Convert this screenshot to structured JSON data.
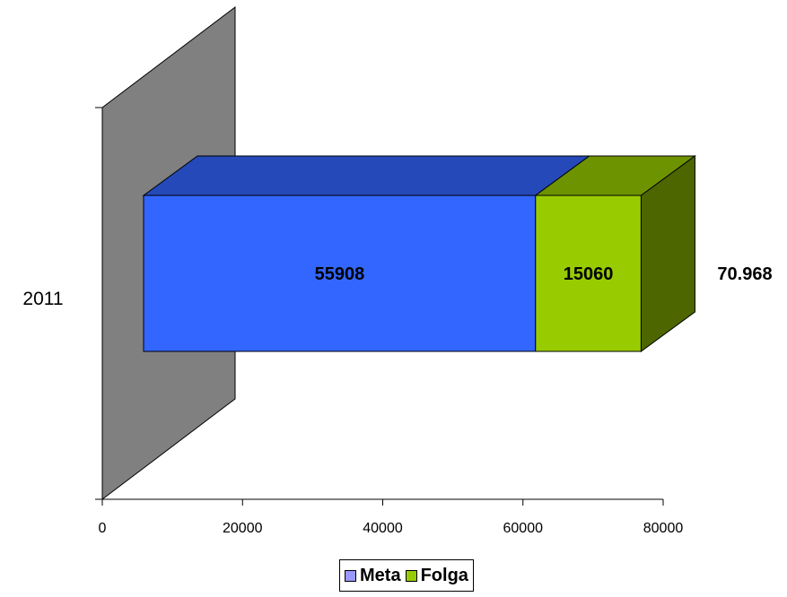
{
  "chart_data": {
    "type": "bar",
    "orientation": "horizontal",
    "stacked": true,
    "three_d": true,
    "categories": [
      "2011"
    ],
    "series": [
      {
        "name": "Meta",
        "values": [
          55908
        ],
        "label": "55908",
        "color": "#3366FF",
        "legend_color": "#9999FF"
      },
      {
        "name": "Folga",
        "values": [
          15060
        ],
        "label": "15060",
        "color": "#99CC00",
        "legend_color": "#99CC00"
      }
    ],
    "total_label": "70.968",
    "xlim": [
      0,
      80000
    ],
    "xticks": [
      "0",
      "20000",
      "40000",
      "60000",
      "80000"
    ],
    "grid": false,
    "legend_position": "bottom",
    "title": "",
    "xlabel": "",
    "ylabel": ""
  }
}
